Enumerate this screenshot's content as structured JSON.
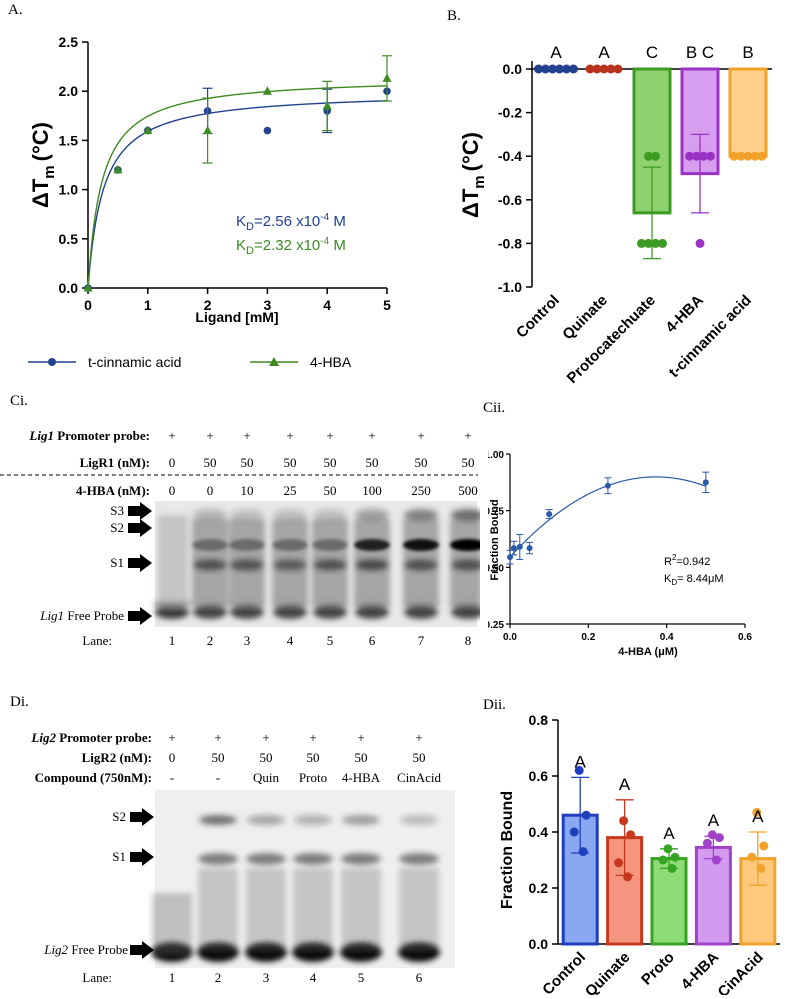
{
  "figure": {
    "panels": {
      "A": "A.",
      "B": "B.",
      "Ci": "Ci.",
      "Cii": "Cii.",
      "Di": "Di.",
      "Dii": "Dii."
    }
  },
  "chart_data": [
    {
      "id": "A",
      "type": "scatter",
      "xlabel": "Ligand [mM]",
      "ylabel_main": "ΔT",
      "ylabel_sub": "m",
      "ylabel_unit": "(°C)",
      "xlim": [
        0,
        5
      ],
      "ylim": [
        0,
        2.5
      ],
      "xticks": [
        "0",
        "1",
        "2",
        "3",
        "4",
        "5"
      ],
      "yticks": [
        "0.0",
        "0.5",
        "1.0",
        "1.5",
        "2.0",
        "2.5"
      ],
      "series": [
        {
          "name": "t-cinnamic acid",
          "color": "#22418f",
          "marker": "circle",
          "x": [
            0,
            0.5,
            1,
            2,
            3,
            4,
            5
          ],
          "y": [
            0,
            1.2,
            1.6,
            1.8,
            1.6,
            1.8,
            2.0
          ],
          "err": [
            0,
            0,
            0,
            0.23,
            0,
            0.22,
            0
          ],
          "kd": 0.256,
          "bmax": 2.0
        },
        {
          "name": "4-HBA",
          "color": "#3e8a23",
          "marker": "triangle",
          "x": [
            0,
            0.5,
            1,
            2,
            3,
            4,
            5
          ],
          "y": [
            0,
            1.2,
            1.6,
            1.6,
            2.0,
            1.85,
            2.13
          ],
          "err": [
            0,
            0,
            0,
            0.33,
            0,
            0.25,
            0.23
          ],
          "kd": 0.232,
          "bmax": 2.15
        }
      ],
      "annotations": [
        {
          "base": "K",
          "sub": "D",
          "text": "=2.56 x10",
          "sup": "-4",
          "unit": " M",
          "color": "#22418f"
        },
        {
          "base": "K",
          "sub": "D",
          "text": "=2.32 x10",
          "sup": "-4",
          "unit": " M",
          "color": "#3e8a23"
        }
      ]
    },
    {
      "id": "B",
      "type": "bar",
      "ylabel_main": "ΔT",
      "ylabel_sub": "m",
      "ylabel_unit": "(°C)",
      "ylim": [
        -1.0,
        0.0
      ],
      "yticks": [
        "0.0",
        "-0.2",
        "-0.4",
        "-0.6",
        "-0.8",
        "-1.0"
      ],
      "categories": [
        "Control",
        "Quinate",
        "Protocatechuate",
        "4-HBA",
        "t-cinnamic acid"
      ],
      "values": [
        0.0,
        0.0,
        -0.66,
        -0.48,
        -0.4
      ],
      "err": [
        0,
        0,
        0.21,
        0.18,
        0
      ],
      "letters": [
        "A",
        "A",
        "C",
        "B C",
        "B"
      ],
      "stroke": [
        "#22418f",
        "#b8321d",
        "#3c9b22",
        "#9a33c4",
        "#f2a22a"
      ],
      "fill": [
        "#22418f",
        "#b8321d",
        "#8fd16f",
        "#d79ef0",
        "#ffd08a"
      ],
      "points": [
        [
          0,
          0,
          0,
          0,
          0,
          0
        ],
        [
          0,
          0,
          0,
          0,
          0
        ],
        [
          -0.4,
          -0.4,
          -0.8,
          -0.8,
          -0.8,
          -0.8
        ],
        [
          -0.4,
          -0.4,
          -0.4,
          -0.4,
          -0.8
        ],
        [
          -0.4,
          -0.4,
          -0.4,
          -0.4,
          -0.4
        ]
      ]
    },
    {
      "id": "Cii",
      "type": "scatter",
      "xlabel": "4-HBA (μM)",
      "ylabel": "Fraction Bound",
      "xlim": [
        0,
        0.6
      ],
      "ylim": [
        0.25,
        1.0
      ],
      "xticks": [
        "0.0",
        "0.2",
        "0.4",
        "0.6"
      ],
      "yticks": [
        "0.25",
        "0.50",
        "0.75",
        "1.00"
      ],
      "x": [
        0,
        0.01,
        0.025,
        0.05,
        0.1,
        0.25,
        0.5
      ],
      "y": [
        0.545,
        0.585,
        0.59,
        0.585,
        0.735,
        0.86,
        0.875
      ],
      "err": [
        0.03,
        0.03,
        0.055,
        0.025,
        0.02,
        0.035,
        0.045
      ],
      "color": "#2a5aa8",
      "r2_base": "R",
      "r2_sup": "2",
      "r2_text": "=0.942",
      "kd_base": "K",
      "kd_sub": "D",
      "kd_text": "= 8.44μM"
    },
    {
      "id": "Dii",
      "type": "bar",
      "ylabel": "Fraction Bound",
      "ylim": [
        0,
        0.8
      ],
      "yticks": [
        "0.0",
        "0.2",
        "0.4",
        "0.6",
        "0.8"
      ],
      "categories": [
        "Control",
        "Quinate",
        "Proto",
        "4-HBA",
        "CinAcid"
      ],
      "values": [
        0.46,
        0.38,
        0.305,
        0.345,
        0.305
      ],
      "err": [
        0.135,
        0.135,
        0.035,
        0.04,
        0.095
      ],
      "letters": [
        "A",
        "A",
        "A",
        "A",
        "A"
      ],
      "stroke": [
        "#1f3fbf",
        "#c6391f",
        "#36a324",
        "#a043c9",
        "#f1a22a"
      ],
      "fill": [
        "#8aa7f2",
        "#f4967f",
        "#8ddc75",
        "#d39af0",
        "#ffc87a"
      ],
      "points": [
        [
          0.62,
          0.46,
          0.4,
          0.33
        ],
        [
          0.44,
          0.39,
          0.29,
          0.24
        ],
        [
          0.34,
          0.31,
          0.3,
          0.27
        ],
        [
          0.39,
          0.38,
          0.36,
          0.3
        ],
        [
          0.47,
          0.35,
          0.31,
          0.27
        ]
      ]
    }
  ],
  "gelC": {
    "rows": [
      {
        "label_it": "Lig1",
        "label": " Promoter probe:",
        "values": [
          "+",
          "+",
          "+",
          "+",
          "+",
          "+",
          "+",
          "+"
        ]
      },
      {
        "label": "LigR1 (nM):",
        "values": [
          "0",
          "50",
          "50",
          "50",
          "50",
          "50",
          "50",
          "50"
        ]
      },
      {
        "label": "4-HBA (nM):",
        "values": [
          "0",
          "0",
          "10",
          "25",
          "50",
          "100",
          "250",
          "500"
        ]
      }
    ],
    "bands": {
      "S3": "S3",
      "S2": "S2",
      "S1": "S1",
      "free_it": "Lig1",
      "free": " Free Probe"
    },
    "lane_label": "Lane:",
    "lanes": [
      "1",
      "2",
      "3",
      "4",
      "5",
      "6",
      "7",
      "8"
    ]
  },
  "gelD": {
    "rows": [
      {
        "label_it": "Lig2",
        "label": " Promoter probe:",
        "values": [
          "+",
          "+",
          "+",
          "+",
          "+",
          "+"
        ]
      },
      {
        "label": "LigR2 (nM):",
        "values": [
          "0",
          "50",
          "50",
          "50",
          "50",
          "50"
        ]
      },
      {
        "label": "Compound (750nM):",
        "values": [
          "-",
          "-",
          "Quin",
          "Proto",
          "4-HBA",
          "CinAcid"
        ]
      }
    ],
    "bands": {
      "S2": "S2",
      "S1": "S1",
      "free_it": "Lig2",
      "free": " Free Probe"
    },
    "lane_label": "Lane:",
    "lanes": [
      "1",
      "2",
      "3",
      "4",
      "5",
      "6"
    ]
  }
}
